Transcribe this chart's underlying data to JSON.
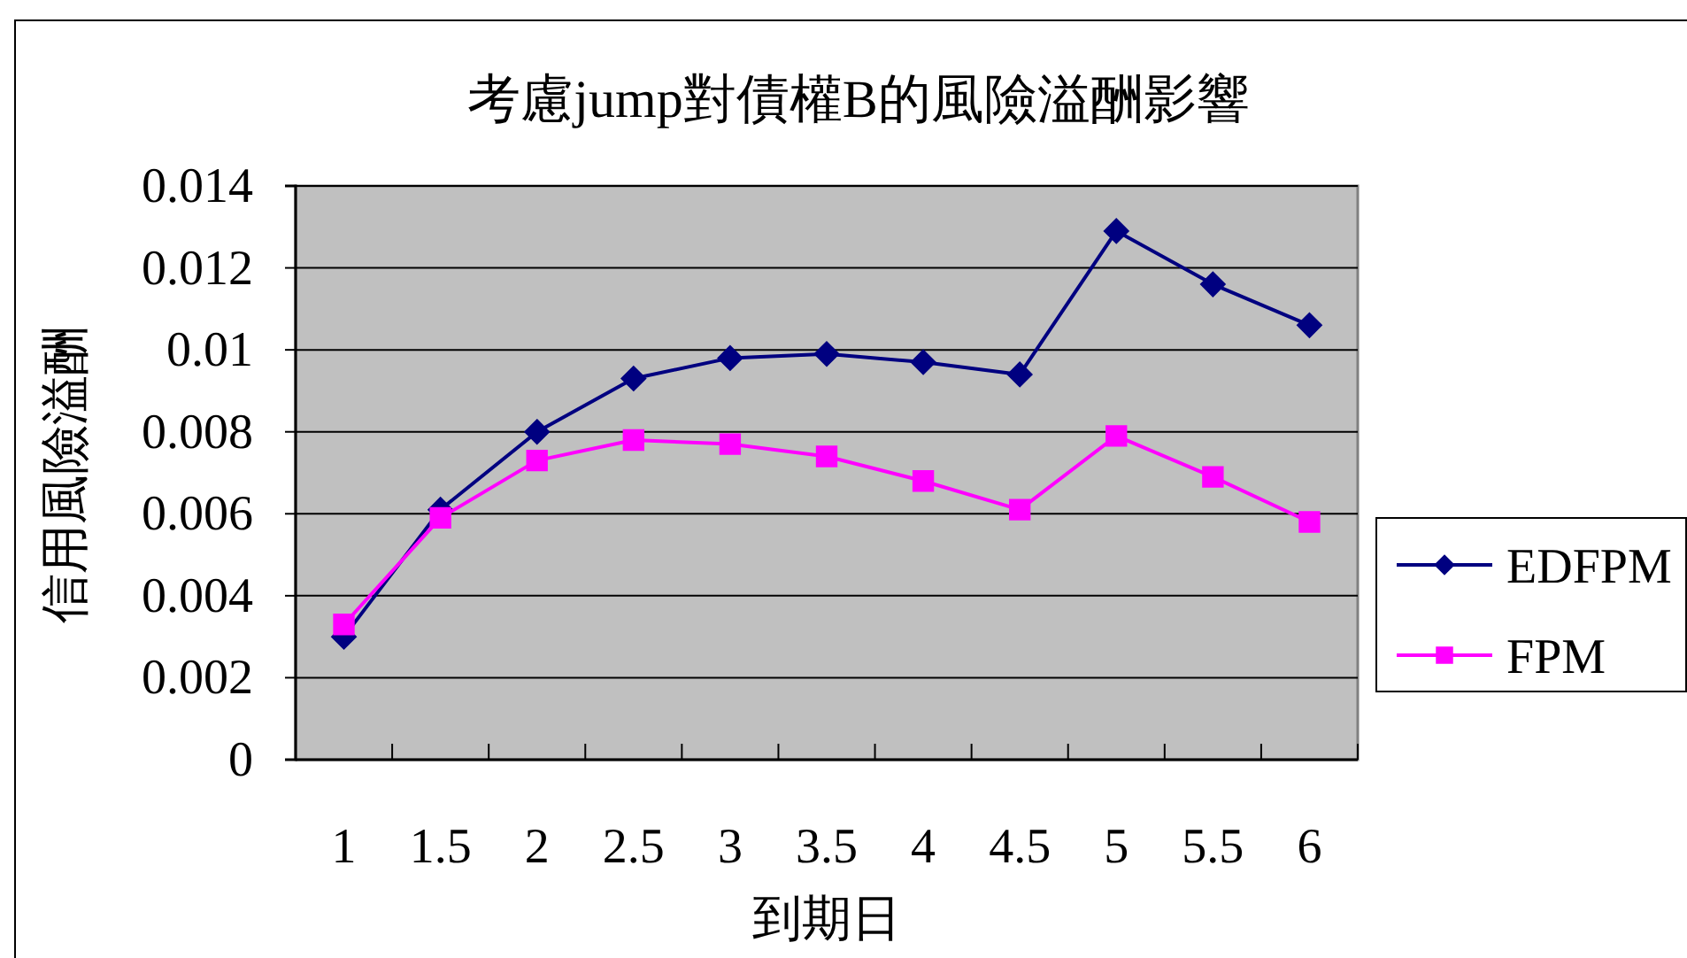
{
  "chart_data": {
    "type": "line",
    "title": "考慮jump對債權B的風險溢酬影響",
    "xlabel": "到期日",
    "ylabel": "信用風險溢酬",
    "categories": [
      "1",
      "1.5",
      "2",
      "2.5",
      "3",
      "3.5",
      "4",
      "4.5",
      "5",
      "5.5",
      "6"
    ],
    "series": [
      {
        "name": "EDFPM",
        "color": "#000080",
        "marker": "diamond",
        "values": [
          0.003,
          0.0061,
          0.008,
          0.0093,
          0.0098,
          0.0099,
          0.0097,
          0.0094,
          0.0129,
          0.0116,
          0.0106
        ]
      },
      {
        "name": "FPM",
        "color": "#ff00ff",
        "marker": "square",
        "values": [
          0.0033,
          0.0059,
          0.0073,
          0.0078,
          0.0077,
          0.0074,
          0.0068,
          0.0061,
          0.0079,
          0.0069,
          0.0058
        ]
      }
    ],
    "ylim": [
      0,
      0.014
    ],
    "yticks": [
      0,
      0.002,
      0.004,
      0.006,
      0.008,
      0.01,
      0.012,
      0.014
    ],
    "grid": "y",
    "legend": "right",
    "line_style": "solid"
  }
}
